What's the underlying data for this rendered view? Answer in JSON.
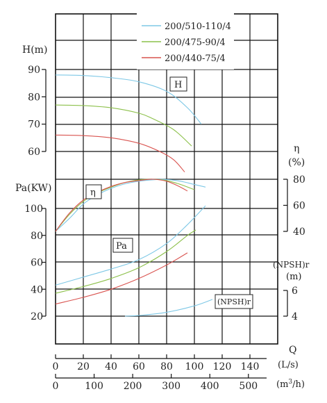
{
  "colors": {
    "s1": "#7ec8e6",
    "s2": "#8cc04a",
    "s3": "#d9534f",
    "grid": "#111111"
  },
  "chart_data": {
    "type": "line",
    "legend": {
      "placement": "top-center",
      "entries": [
        "200/510-110/4",
        "200/475-90/4",
        "200/440-75/4"
      ]
    },
    "x": {
      "xlabel": "Q",
      "unit_top": "(L/s)",
      "unit_bottom": "(m3/h)",
      "ticks_ls": [
        0,
        20,
        40,
        60,
        80,
        100,
        120,
        140
      ],
      "ticks_m3h": [
        0,
        100,
        200,
        300,
        400,
        500
      ],
      "range_ls": [
        0,
        160
      ]
    },
    "axes": {
      "H": {
        "label": "H(m)",
        "ticks": [
          60,
          70,
          80,
          90
        ],
        "range": [
          56,
          91
        ],
        "curve_label": "H"
      },
      "Pa": {
        "label": "Pa(KW)",
        "ticks": [
          20,
          40,
          60,
          80,
          100
        ],
        "range": [
          20,
          100
        ],
        "curve_label": "Pa"
      },
      "eta": {
        "label": "η",
        "unit": "(%)",
        "ticks": [
          40,
          60,
          80
        ],
        "range": [
          40,
          80
        ],
        "curve_label": "η"
      },
      "npsh": {
        "label": "(NPSH)r",
        "unit": "(m)",
        "ticks": [
          4,
          6
        ],
        "range": [
          4,
          6
        ],
        "curve_label": "(NPSH)r"
      }
    },
    "series": [
      {
        "name": "200/510-110/4",
        "color": "#7ec8e6",
        "H": [
          [
            0,
            88
          ],
          [
            20,
            87.8
          ],
          [
            40,
            87
          ],
          [
            60,
            85.5
          ],
          [
            80,
            82
          ],
          [
            95,
            76
          ],
          [
            105,
            70
          ]
        ],
        "eta": [
          [
            0,
            40
          ],
          [
            10,
            50
          ],
          [
            20,
            61
          ],
          [
            30,
            68
          ],
          [
            40,
            73
          ],
          [
            50,
            76.5
          ],
          [
            60,
            78.5
          ],
          [
            70,
            79.6
          ],
          [
            80,
            79.8
          ],
          [
            90,
            78.5
          ],
          [
            100,
            76
          ],
          [
            108,
            74
          ]
        ],
        "Pa": [
          [
            0,
            43
          ],
          [
            20,
            49
          ],
          [
            40,
            55
          ],
          [
            60,
            62
          ],
          [
            80,
            74
          ],
          [
            95,
            88
          ],
          [
            108,
            102
          ]
        ]
      },
      {
        "name": "200/475-90/4",
        "color": "#8cc04a",
        "H": [
          [
            0,
            77
          ],
          [
            20,
            76.8
          ],
          [
            40,
            76
          ],
          [
            60,
            74
          ],
          [
            70,
            72
          ],
          [
            85,
            68
          ],
          [
            98,
            62
          ]
        ],
        "eta": [
          [
            0,
            40
          ],
          [
            10,
            53
          ],
          [
            20,
            63
          ],
          [
            30,
            69.5
          ],
          [
            40,
            74
          ],
          [
            50,
            77.5
          ],
          [
            60,
            79.5
          ],
          [
            70,
            80
          ],
          [
            80,
            79
          ],
          [
            90,
            76
          ],
          [
            100,
            72
          ]
        ],
        "Pa": [
          [
            0,
            37
          ],
          [
            20,
            42
          ],
          [
            40,
            48
          ],
          [
            60,
            56
          ],
          [
            80,
            68
          ],
          [
            95,
            80
          ],
          [
            101,
            84
          ]
        ]
      },
      {
        "name": "200/440-75/4",
        "color": "#d9534f",
        "H": [
          [
            0,
            66
          ],
          [
            20,
            65.8
          ],
          [
            40,
            65
          ],
          [
            60,
            63
          ],
          [
            75,
            60
          ],
          [
            85,
            57
          ],
          [
            93,
            52.5
          ]
        ],
        "eta": [
          [
            0,
            40
          ],
          [
            10,
            54
          ],
          [
            20,
            64
          ],
          [
            30,
            70
          ],
          [
            40,
            74.5
          ],
          [
            50,
            77.5
          ],
          [
            60,
            79
          ],
          [
            70,
            80
          ],
          [
            80,
            78.5
          ],
          [
            88,
            75
          ],
          [
            95,
            71
          ]
        ],
        "Pa": [
          [
            0,
            29
          ],
          [
            20,
            34
          ],
          [
            40,
            40
          ],
          [
            60,
            48
          ],
          [
            80,
            58
          ],
          [
            95,
            67
          ]
        ]
      }
    ],
    "npsh_curve": {
      "color": "#7ec8e6",
      "points": [
        [
          50,
          4
        ],
        [
          60,
          4.05
        ],
        [
          80,
          4.3
        ],
        [
          100,
          4.8
        ],
        [
          113,
          5.3
        ]
      ]
    },
    "grid": true
  }
}
